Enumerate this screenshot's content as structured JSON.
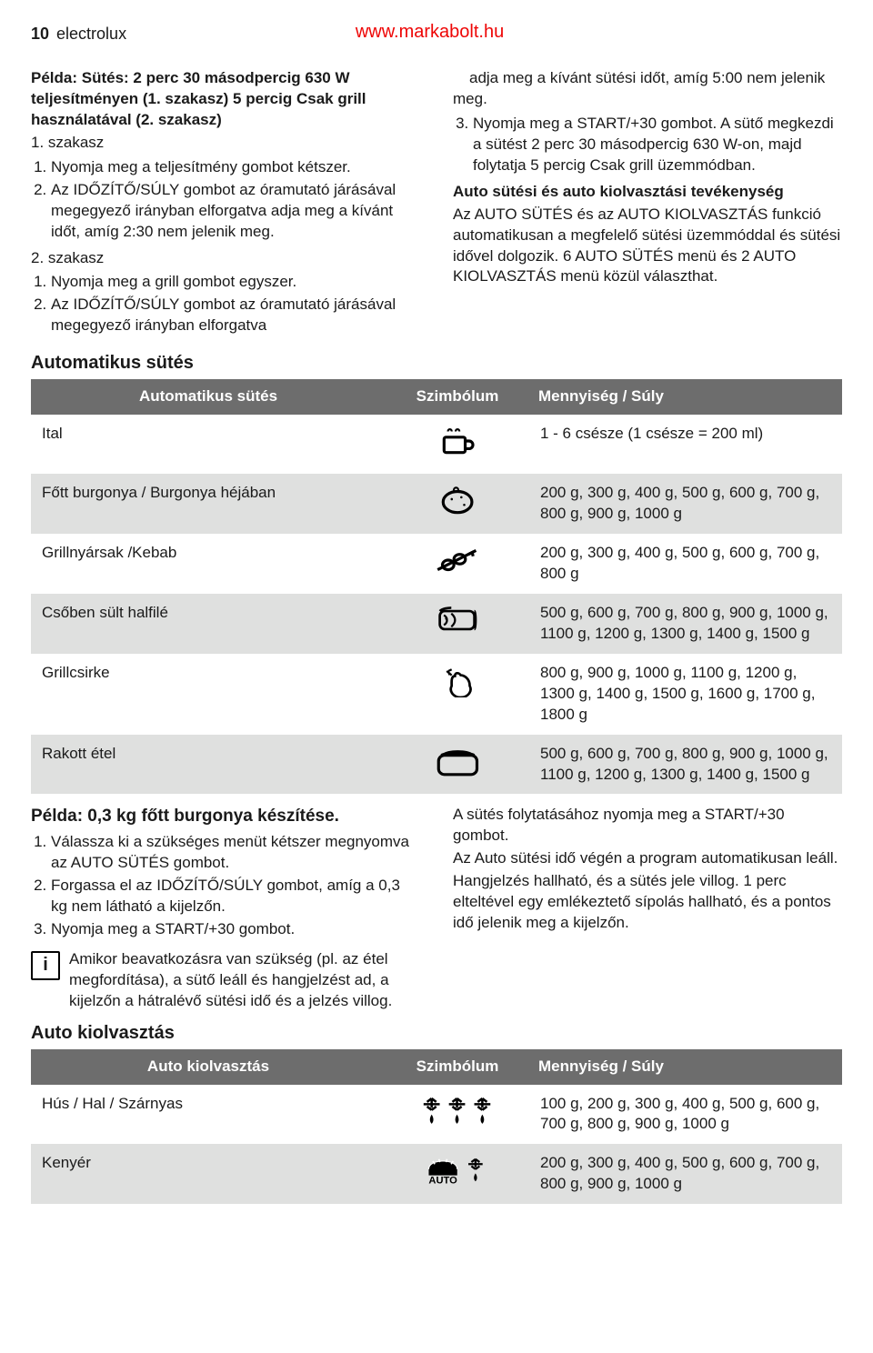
{
  "header": {
    "page_number": "10",
    "brand": "electrolux",
    "url": "www.markabolt.hu"
  },
  "left": {
    "example_title": "Példa: Sütés: 2 perc 30 másodpercig 630 W teljesítményen (1. szakasz) 5 percig Csak grill használatával (2. szakasz)",
    "stage1_label": "1. szakasz",
    "stage1_items": [
      "Nyomja meg a teljesítmény gombot kétszer.",
      "Az IDŐZÍTŐ/SÚLY gombot az óramutató járásával megegyező irányban elforgatva adja meg a kívánt időt, amíg 2:30 nem jelenik meg."
    ],
    "stage2_label": "2. szakasz",
    "stage2_items": [
      "Nyomja meg a grill gombot egyszer.",
      "Az IDŐZÍTŐ/SÚLY gombot az óramutató járásával megegyező irányban elforgatva"
    ]
  },
  "right": {
    "line1": "adja meg a kívánt sütési időt, amíg 5:00 nem jelenik meg.",
    "line2": "Nyomja meg a START/+30 gombot. A sütő megkezdi a sütést 2 perc 30 másodpercig 630 W-on, majd folytatja 5 percig Csak grill üzemmódban.",
    "subhead": "Auto sütési és auto kiolvasztási tevékenység",
    "body": "Az AUTO SÜTÉS és az AUTO KIOLVASZTÁS funkció automatikusan a megfelelő sütési üzemmóddal és sütési idővel dolgozik. 6 AUTO SÜTÉS menü és 2 AUTO KIOLVASZTÁS menü közül választhat."
  },
  "auto_cook": {
    "section_title": "Automatikus sütés",
    "columns": {
      "c1": "Automatikus sütés",
      "c2": "Szimbólum",
      "c3": "Mennyiség / Súly"
    },
    "rows": [
      {
        "name": "Ital",
        "icon": "cup",
        "qty": "1 - 6 csésze (1 csésze = 200 ml)"
      },
      {
        "name": "Főtt burgonya / Burgonya héjában",
        "icon": "potato",
        "qty": "200 g, 300 g, 400 g, 500 g, 600 g, 700 g, 800 g, 900 g, 1000 g"
      },
      {
        "name": "Grillnyársak /Kebab",
        "icon": "skewer",
        "qty": "200 g, 300 g, 400 g, 500 g, 600 g, 700 g, 800 g"
      },
      {
        "name": "Csőben sült halfilé",
        "icon": "fish",
        "qty": "500 g, 600 g, 700 g, 800 g, 900 g, 1000 g, 1100 g, 1200 g, 1300 g, 1400 g, 1500 g"
      },
      {
        "name": "Grillcsirke",
        "icon": "chicken",
        "qty": "800 g, 900 g, 1000 g, 1100 g, 1200 g, 1300 g, 1400 g, 1500 g, 1600 g, 1700 g, 1800 g"
      },
      {
        "name": "Rakott étel",
        "icon": "casserole",
        "qty": "500 g, 600 g, 700 g, 800 g, 900 g, 1000 g, 1100 g, 1200 g, 1300 g, 1400 g, 1500 g"
      }
    ]
  },
  "example2": {
    "title": "Példa: 0,3 kg főtt burgonya készítése.",
    "steps": [
      "Válassza ki a szükséges menüt kétszer megnyomva az AUTO SÜTÉS gombot.",
      "Forgassa el az IDŐZÍTŐ/SÚLY gombot, amíg a 0,3 kg nem látható a kijelzőn.",
      "Nyomja meg a START/+30 gombot."
    ],
    "info": "Amikor beavatkozásra van szükség (pl. az étel megfordítása), a sütő leáll és hangjelzést ad, a kijelzőn a hátralévő sütési idő és a jelzés villog."
  },
  "example2_right": {
    "p1": "A sütés folytatásához nyomja meg a START/+30 gombot.",
    "p2": "Az Auto sütési idő végén a program automatikusan leáll.",
    "p3": "Hangjelzés hallható, és a sütés jele villog. 1 perc elteltével egy emlékeztető sípolás hallható, és a pontos idő jelenik meg a kijelzőn."
  },
  "auto_defrost": {
    "section_title": "Auto kiolvasztás",
    "columns": {
      "c1": "Auto kiolvasztás",
      "c2": "Szimbólum",
      "c3": "Mennyiség / Súly"
    },
    "rows": [
      {
        "name": "Hús / Hal / Szárnyas",
        "icon": "defrost3",
        "qty": "100 g, 200 g, 300 g, 400 g, 500 g, 600 g, 700 g, 800 g, 900 g, 1000 g"
      },
      {
        "name": "Kenyér",
        "icon": "bread",
        "qty": "200 g, 300 g, 400 g, 500 g, 600 g, 700 g, 800 g, 900 g, 1000 g"
      }
    ]
  },
  "colors": {
    "header_bg": "#6d6d6d",
    "header_fg": "#ffffff",
    "row_alt": "#dfe0df",
    "url": "#ee0505"
  }
}
